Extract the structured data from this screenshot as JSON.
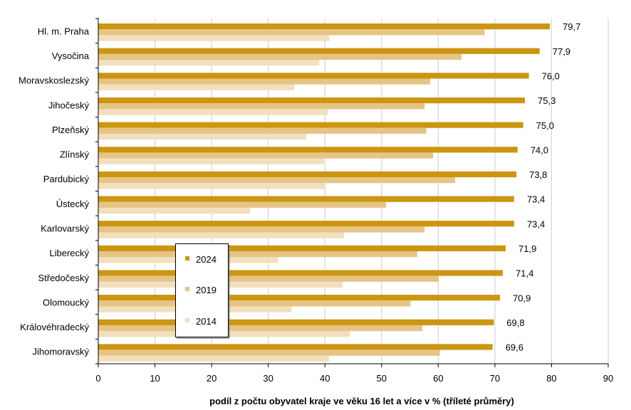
{
  "chart_data": {
    "type": "bar",
    "orientation": "horizontal",
    "title": "",
    "xlabel": "podíl z počtu obyvatel kraje ve věku 16 let a více v % (tříleté průměry)",
    "ylabel": "",
    "xlim": [
      0,
      90
    ],
    "xticks": [
      "0",
      "10",
      "20",
      "30",
      "40",
      "50",
      "60",
      "70",
      "80",
      "90"
    ],
    "grid": true,
    "legend_position": "left-lower-middle",
    "categories": [
      "Hl. m. Praha",
      "Vysočina",
      "Moravskoslezský",
      "Jihočeský",
      "Plzeňský",
      "Zlínský",
      "Pardubický",
      "Ústecký",
      "Karlovarský",
      "Liberecký",
      "Středočeský",
      "Olomoucký",
      "Královéhradecký",
      "Jihomoravský"
    ],
    "series": [
      {
        "name": "2024",
        "color": "#CC9612",
        "values": [
          79.7,
          77.9,
          76.0,
          75.3,
          75.0,
          74.0,
          73.8,
          73.4,
          73.4,
          71.9,
          71.4,
          70.9,
          69.8,
          69.6
        ],
        "labels": [
          "79,7",
          "77,9",
          "76,0",
          "75,3",
          "75,0",
          "74,0",
          "73,8",
          "73,4",
          "73,4",
          "71,9",
          "71,4",
          "70,9",
          "69,8",
          "69,6"
        ]
      },
      {
        "name": "2019",
        "color": "#E6C485",
        "values": [
          68.2,
          64.1,
          58.6,
          57.6,
          57.9,
          59.1,
          63.0,
          50.8,
          57.6,
          56.3,
          60.1,
          55.1,
          57.2,
          60.3
        ]
      },
      {
        "name": "2014",
        "color": "#F2DFBD",
        "values": [
          40.8,
          39.0,
          34.6,
          40.5,
          36.7,
          39.8,
          40.0,
          26.8,
          43.4,
          31.7,
          43.1,
          34.1,
          44.4,
          40.7
        ]
      }
    ],
    "legend_order": [
      "2024",
      "2019",
      "2014"
    ]
  },
  "colors": {
    "grid": "#D4D4D4",
    "axis": "#000000",
    "legend_border": "#000000"
  }
}
